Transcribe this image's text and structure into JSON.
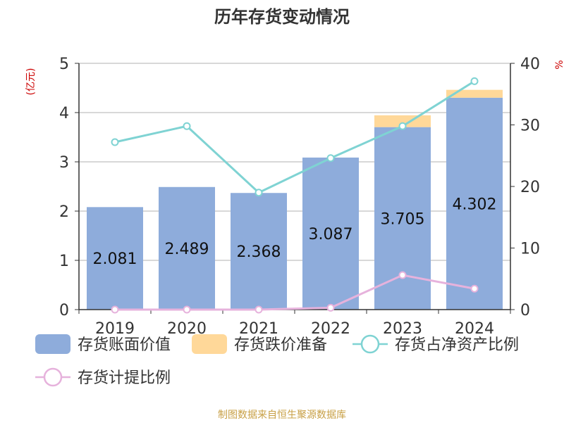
{
  "chart_data": {
    "type": "bar",
    "title": "历年存货变动情况",
    "categories": [
      "2019",
      "2020",
      "2021",
      "2022",
      "2023",
      "2024"
    ],
    "y_left": {
      "unit_label": "(亿元)",
      "min": 0,
      "max": 5,
      "ticks": [
        "0",
        "1",
        "2",
        "3",
        "4",
        "5"
      ]
    },
    "y_right": {
      "unit_label": "%",
      "min": 0,
      "max": 40,
      "ticks": [
        "0",
        "10",
        "20",
        "30",
        "40"
      ]
    },
    "grid": true,
    "legend_position": "bottom",
    "bar_series": [
      {
        "name": "存货账面价值",
        "color": "#8eacdb",
        "values": [
          2.081,
          2.489,
          2.368,
          3.087,
          3.705,
          4.302
        ],
        "value_labels": [
          "2.081",
          "2.489",
          "2.368",
          "3.087",
          "3.705",
          "4.302"
        ]
      },
      {
        "name": "存货跌价准备",
        "color": "#ffd899",
        "values": [
          0.0,
          0.0,
          0.0,
          0.0,
          0.24,
          0.16
        ]
      }
    ],
    "line_series": [
      {
        "name": "存货占净资产比例",
        "color": "#7fd3d3",
        "axis": "right",
        "values": [
          27.2,
          29.8,
          19.0,
          24.6,
          29.8,
          37.1
        ]
      },
      {
        "name": "存货计提比例",
        "color": "#e6b2dc",
        "axis": "right",
        "values": [
          0.0,
          0.0,
          0.0,
          0.3,
          5.6,
          3.4
        ]
      }
    ]
  },
  "footer": {
    "source": "制图数据来自恒生聚源数据库"
  }
}
